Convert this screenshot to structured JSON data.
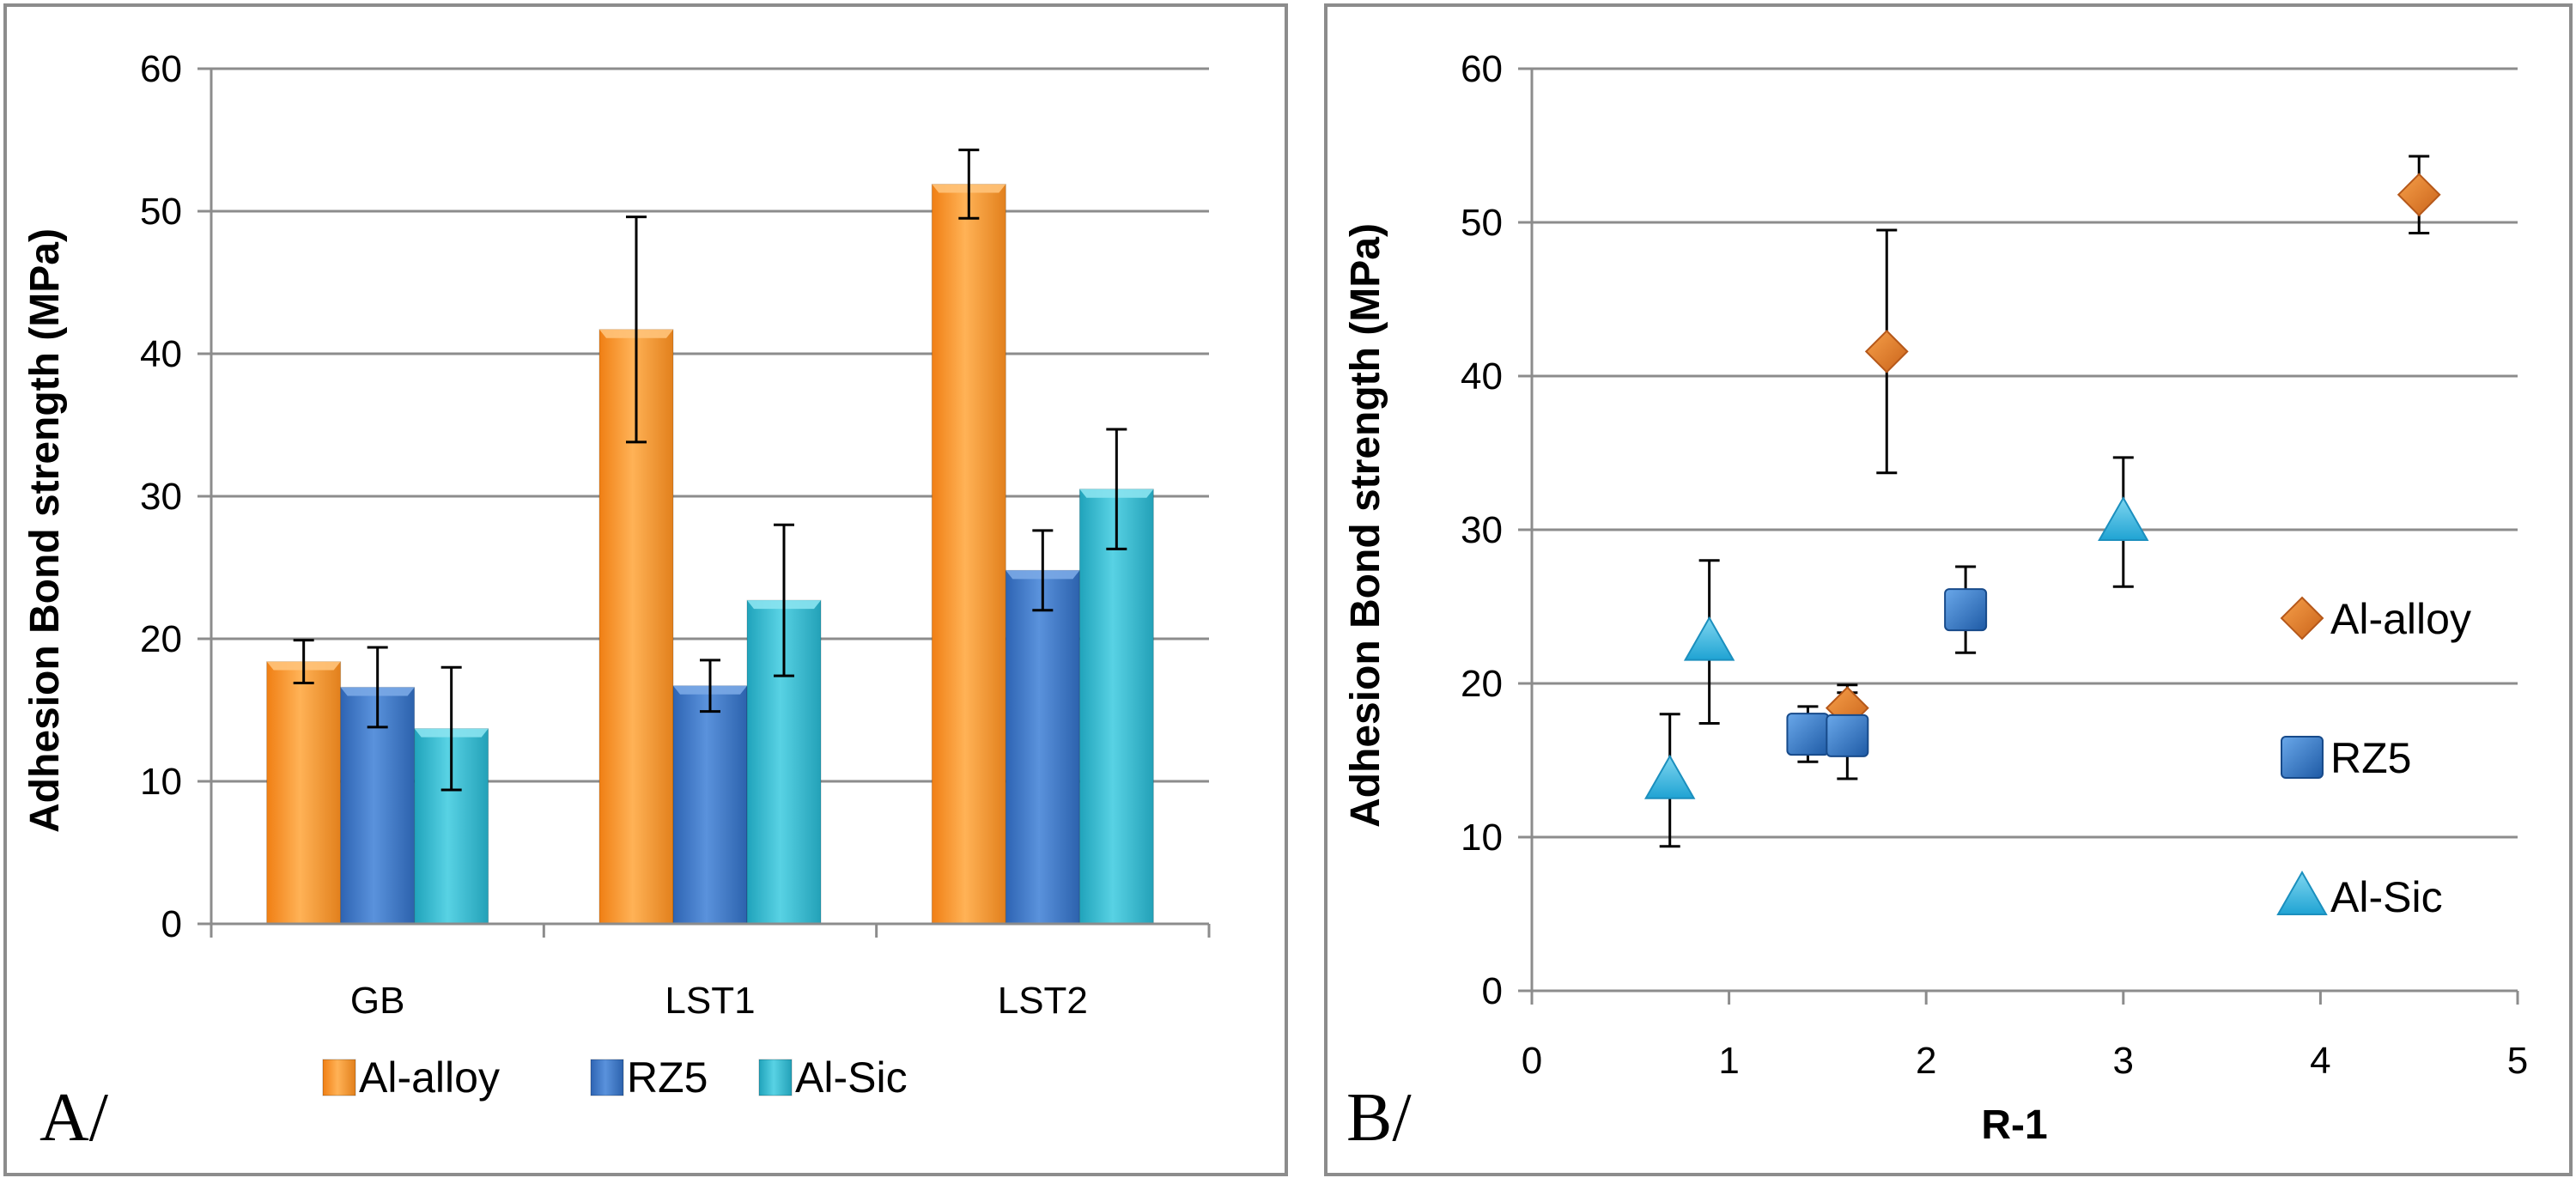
{
  "colors": {
    "al_alloy": "#f39a2e",
    "al_alloy_dark": "#d9731c",
    "rz5": "#3a78c9",
    "rz5_dark": "#245a9c",
    "al_sic": "#35b6cc",
    "al_sic_dark": "#1d8ea3",
    "grid": "#8c8c8c"
  },
  "chart_data": [
    {
      "type": "bar",
      "panel_label": "A/",
      "title": "",
      "xlabel": "",
      "ylabel": "Adhesion Bond strength (MPa)",
      "ylim": [
        0,
        60
      ],
      "yticks": [
        0,
        10,
        20,
        30,
        40,
        50,
        60
      ],
      "categories": [
        "GB",
        "LST1",
        "LST2"
      ],
      "series": [
        {
          "name": "Al-alloy",
          "values": [
            18.4,
            41.7,
            51.9
          ],
          "errors": [
            1.5,
            7.9,
            2.4
          ]
        },
        {
          "name": "RZ5",
          "values": [
            16.6,
            16.7,
            24.8
          ],
          "errors": [
            2.8,
            1.8,
            2.8
          ]
        },
        {
          "name": "Al-Sic",
          "values": [
            13.7,
            22.7,
            30.5
          ],
          "errors": [
            4.3,
            5.3,
            4.2
          ]
        }
      ],
      "legend_position": "bottom"
    },
    {
      "type": "scatter",
      "panel_label": "B/",
      "title": "",
      "xlabel": "R-1",
      "ylabel": "Adhesion Bond strength (MPa)",
      "xlim": [
        0,
        5
      ],
      "ylim": [
        0,
        60
      ],
      "xticks": [
        0,
        1,
        2,
        3,
        4,
        5
      ],
      "yticks": [
        0,
        10,
        20,
        30,
        40,
        50,
        60
      ],
      "series": [
        {
          "name": "Al-alloy",
          "marker": "diamond",
          "points": [
            {
              "x": 1.6,
              "y": 18.4,
              "err": 1.5
            },
            {
              "x": 1.8,
              "y": 41.6,
              "err": 7.9
            },
            {
              "x": 4.5,
              "y": 51.8,
              "err": 2.5
            }
          ]
        },
        {
          "name": "RZ5",
          "marker": "square",
          "points": [
            {
              "x": 1.4,
              "y": 16.7,
              "err": 1.8
            },
            {
              "x": 1.6,
              "y": 16.6,
              "err": 2.8
            },
            {
              "x": 2.2,
              "y": 24.8,
              "err": 2.8
            }
          ]
        },
        {
          "name": "Al-Sic",
          "marker": "triangle",
          "points": [
            {
              "x": 0.7,
              "y": 13.7,
              "err": 4.3
            },
            {
              "x": 0.9,
              "y": 22.7,
              "err": 5.3
            },
            {
              "x": 3.0,
              "y": 30.5,
              "err": 4.2
            }
          ]
        }
      ],
      "legend_position": "right"
    }
  ]
}
